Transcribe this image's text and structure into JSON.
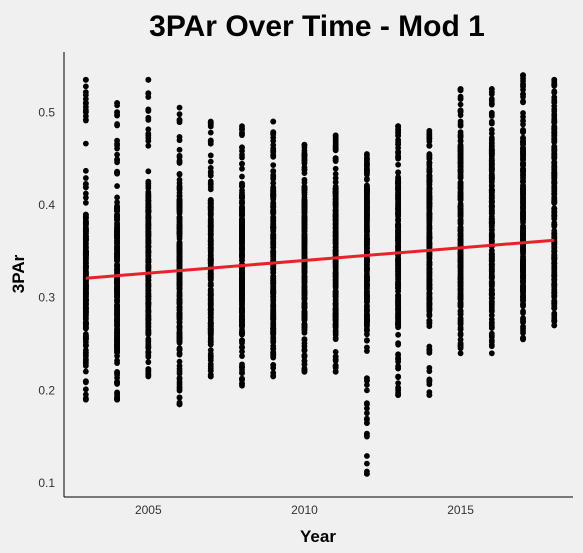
{
  "chart_data": {
    "type": "scatter",
    "title": "3PAr Over Time - Mod 1",
    "xlabel": "Year",
    "ylabel": "3PAr",
    "xlim": [
      2002.3,
      2018.6
    ],
    "ylim": [
      0.085,
      0.565
    ],
    "x_ticks": [
      2005,
      2010,
      2015
    ],
    "y_ticks": [
      0.1,
      0.2,
      0.3,
      0.4,
      0.5
    ],
    "grid": false,
    "legend": "none",
    "point_color": "#000000",
    "trend_color": "#e8212a",
    "columns": [
      {
        "year": 2003,
        "min": 0.19,
        "max": 0.535,
        "dense_low": 0.255,
        "dense_high": 0.39,
        "outliers": [
          0.19,
          0.5,
          0.535
        ]
      },
      {
        "year": 2004,
        "min": 0.19,
        "max": 0.51,
        "dense_low": 0.24,
        "dense_high": 0.4,
        "outliers": [
          0.19,
          0.5,
          0.51
        ]
      },
      {
        "year": 2005,
        "min": 0.215,
        "max": 0.535,
        "dense_low": 0.26,
        "dense_high": 0.41,
        "outliers": [
          0.52,
          0.535
        ]
      },
      {
        "year": 2006,
        "min": 0.185,
        "max": 0.505,
        "dense_low": 0.25,
        "dense_high": 0.41,
        "outliers": [
          0.185
        ]
      },
      {
        "year": 2007,
        "min": 0.215,
        "max": 0.49,
        "dense_low": 0.26,
        "dense_high": 0.41,
        "outliers": [
          0.215
        ]
      },
      {
        "year": 2008,
        "min": 0.205,
        "max": 0.485,
        "dense_low": 0.26,
        "dense_high": 0.41,
        "outliers": []
      },
      {
        "year": 2009,
        "min": 0.215,
        "max": 0.49,
        "dense_low": 0.26,
        "dense_high": 0.42,
        "outliers": [
          0.49
        ]
      },
      {
        "year": 2010,
        "min": 0.22,
        "max": 0.465,
        "dense_low": 0.265,
        "dense_high": 0.42,
        "outliers": []
      },
      {
        "year": 2011,
        "min": 0.22,
        "max": 0.475,
        "dense_low": 0.27,
        "dense_high": 0.42,
        "outliers": [
          0.475
        ]
      },
      {
        "year": 2012,
        "min": 0.11,
        "max": 0.455,
        "dense_low": 0.26,
        "dense_high": 0.42,
        "outliers": [
          0.11,
          0.185,
          0.2
        ]
      },
      {
        "year": 2013,
        "min": 0.195,
        "max": 0.485,
        "dense_low": 0.27,
        "dense_high": 0.43,
        "outliers": [
          0.195,
          0.485
        ]
      },
      {
        "year": 2014,
        "min": 0.195,
        "max": 0.48,
        "dense_low": 0.285,
        "dense_high": 0.44,
        "outliers": [
          0.195
        ]
      },
      {
        "year": 2015,
        "min": 0.24,
        "max": 0.525,
        "dense_low": 0.285,
        "dense_high": 0.47,
        "outliers": [
          0.525
        ]
      },
      {
        "year": 2016,
        "min": 0.24,
        "max": 0.525,
        "dense_low": 0.295,
        "dense_high": 0.46,
        "outliers": [
          0.525
        ]
      },
      {
        "year": 2017,
        "min": 0.255,
        "max": 0.54,
        "dense_low": 0.3,
        "dense_high": 0.47,
        "outliers": [
          0.54
        ]
      },
      {
        "year": 2018,
        "min": 0.27,
        "max": 0.535,
        "dense_low": 0.3,
        "dense_high": 0.49,
        "outliers": [
          0.53,
          0.535
        ]
      }
    ],
    "trend_line": {
      "x": [
        2003,
        2018
      ],
      "y": [
        0.321,
        0.362
      ]
    }
  }
}
